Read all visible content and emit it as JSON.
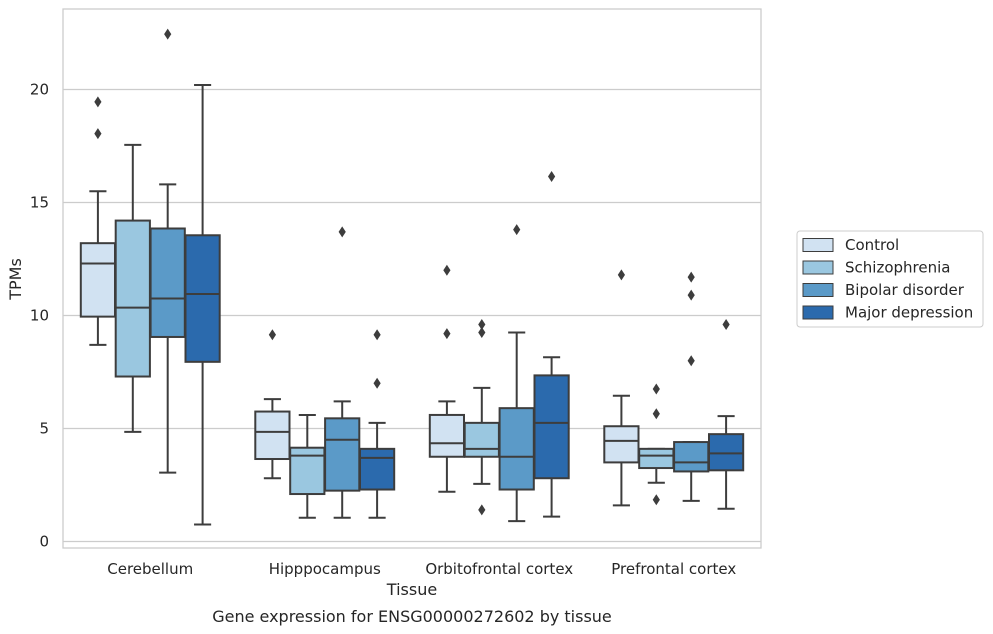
{
  "chart_data": {
    "type": "box",
    "caption": "Gene expression for ENSG00000272602 by tissue",
    "xlabel": "Tissue",
    "ylabel": "TPMs",
    "ylim": [
      -0.25,
      23.5
    ],
    "yticks": [
      0,
      5,
      10,
      15,
      20
    ],
    "grid": "horizontal",
    "legend_position": "right",
    "categories": [
      "Cerebellum",
      "Hipppocampus",
      "Orbitofrontal cortex",
      "Prefrontal cortex"
    ],
    "series": [
      {
        "name": "Control",
        "color": "#d1e2f2",
        "boxes": [
          {
            "whislo": 8.7,
            "q1": 9.95,
            "med": 12.3,
            "q3": 13.2,
            "whishi": 15.5,
            "fliers": [
              18.05,
              19.45
            ]
          },
          {
            "whislo": 2.8,
            "q1": 3.65,
            "med": 4.85,
            "q3": 5.75,
            "whishi": 6.3,
            "fliers": [
              9.15
            ]
          },
          {
            "whislo": 2.2,
            "q1": 3.75,
            "med": 4.35,
            "q3": 5.6,
            "whishi": 6.2,
            "fliers": [
              9.2,
              12.0
            ]
          },
          {
            "whislo": 1.6,
            "q1": 3.5,
            "med": 4.45,
            "q3": 5.1,
            "whishi": 6.45,
            "fliers": [
              11.8
            ]
          }
        ]
      },
      {
        "name": "Schizophrenia",
        "color": "#9ac7e0",
        "boxes": [
          {
            "whislo": 4.85,
            "q1": 7.3,
            "med": 10.35,
            "q3": 14.2,
            "whishi": 17.55,
            "fliers": []
          },
          {
            "whislo": 1.05,
            "q1": 2.1,
            "med": 3.8,
            "q3": 4.15,
            "whishi": 5.6,
            "fliers": []
          },
          {
            "whislo": 2.55,
            "q1": 3.75,
            "med": 4.1,
            "q3": 5.25,
            "whishi": 6.8,
            "fliers": [
              1.4,
              9.25,
              9.6
            ]
          },
          {
            "whislo": 2.6,
            "q1": 3.25,
            "med": 3.8,
            "q3": 4.1,
            "whishi": 4.1,
            "fliers": [
              1.85,
              5.65,
              6.75
            ]
          }
        ]
      },
      {
        "name": "Bipolar disorder",
        "color": "#5b9ac8",
        "boxes": [
          {
            "whislo": 3.05,
            "q1": 9.05,
            "med": 10.75,
            "q3": 13.85,
            "whishi": 15.8,
            "fliers": [
              22.45
            ]
          },
          {
            "whislo": 1.05,
            "q1": 2.25,
            "med": 4.5,
            "q3": 5.45,
            "whishi": 6.2,
            "fliers": [
              13.7
            ]
          },
          {
            "whislo": 0.9,
            "q1": 2.3,
            "med": 3.75,
            "q3": 5.9,
            "whishi": 9.25,
            "fliers": [
              13.8
            ]
          },
          {
            "whislo": 1.8,
            "q1": 3.1,
            "med": 3.5,
            "q3": 4.4,
            "whishi": 4.4,
            "fliers": [
              8.0,
              10.9,
              11.7
            ]
          }
        ]
      },
      {
        "name": "Major depression",
        "color": "#2b6aad",
        "boxes": [
          {
            "whislo": 0.75,
            "q1": 7.95,
            "med": 10.95,
            "q3": 13.55,
            "whishi": 20.2,
            "fliers": []
          },
          {
            "whislo": 1.05,
            "q1": 2.3,
            "med": 3.7,
            "q3": 4.1,
            "whishi": 5.25,
            "fliers": [
              7.0,
              9.15
            ]
          },
          {
            "whislo": 1.1,
            "q1": 2.8,
            "med": 5.25,
            "q3": 7.35,
            "whishi": 8.15,
            "fliers": [
              16.15
            ]
          },
          {
            "whislo": 1.45,
            "q1": 3.15,
            "med": 3.9,
            "q3": 4.75,
            "whishi": 5.55,
            "fliers": [
              9.6
            ]
          }
        ]
      }
    ]
  }
}
